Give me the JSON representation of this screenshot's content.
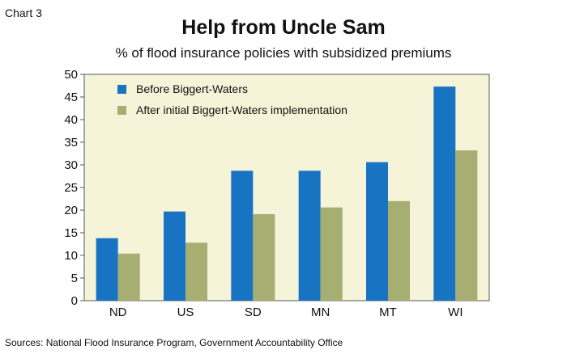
{
  "header": {
    "chart_number": "Chart 3",
    "title": "Help from Uncle Sam",
    "subtitle": "% of flood insurance policies with subsidized premiums"
  },
  "footer": {
    "source": "Sources: National Flood Insurance Program, Government Accountability Office"
  },
  "colors": {
    "plot_background": "#f5f3d8",
    "before": "#1874c3",
    "after": "#a6ae72",
    "axis": "#555555"
  },
  "chart_data": {
    "type": "bar",
    "categories": [
      "ND",
      "US",
      "SD",
      "MN",
      "MT",
      "WI"
    ],
    "series": [
      {
        "name": "Before Biggert-Waters",
        "values": [
          13.8,
          19.7,
          28.7,
          28.7,
          30.6,
          47.3
        ]
      },
      {
        "name": "After initial Biggert-Waters implementation",
        "values": [
          10.4,
          12.8,
          19.1,
          20.6,
          22.0,
          33.2
        ]
      }
    ],
    "ylim": [
      0,
      50
    ],
    "yticks": [
      0,
      5,
      10,
      15,
      20,
      25,
      30,
      35,
      40,
      45,
      50
    ],
    "grid": false,
    "legend_position": "top-left"
  }
}
